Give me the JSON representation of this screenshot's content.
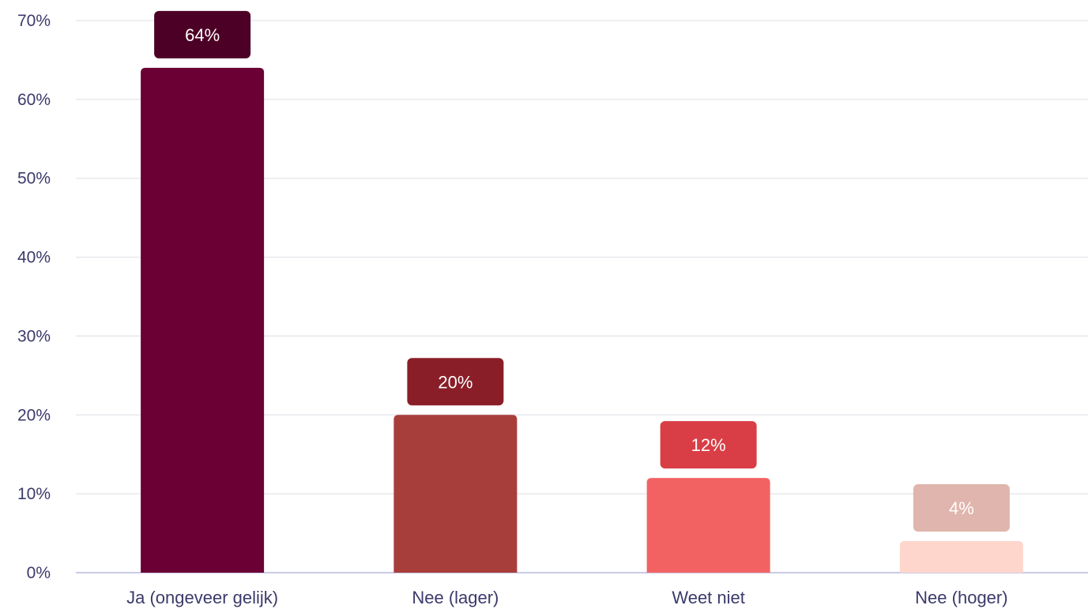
{
  "chart_data": {
    "type": "bar",
    "title": "",
    "xlabel": "",
    "ylabel": "",
    "categories": [
      "Ja (ongeveer gelijk)",
      "Nee (lager)",
      "Weet niet",
      "Nee (hoger)"
    ],
    "values": [
      64,
      20,
      12,
      4
    ],
    "data_labels": [
      "64%",
      "20%",
      "12%",
      "4%"
    ],
    "ylim": [
      0,
      70
    ],
    "yticks": [
      0,
      10,
      20,
      30,
      40,
      50,
      60,
      70
    ],
    "ytick_labels": [
      "0%",
      "10%",
      "20%",
      "30%",
      "40%",
      "50%",
      "60%",
      "70%"
    ],
    "grid": true,
    "legend": "none",
    "bar_colors": [
      "#6a0034",
      "#a83e3c",
      "#f26262",
      "#ffd6cc"
    ],
    "label_colors": [
      "#4d0025",
      "#8a1e28",
      "#d93e46",
      "#e0b5ad"
    ],
    "gridline_color": "#e8e8ee",
    "axis_color": "#c9c9e6",
    "text_color": "#3b3a6b"
  }
}
